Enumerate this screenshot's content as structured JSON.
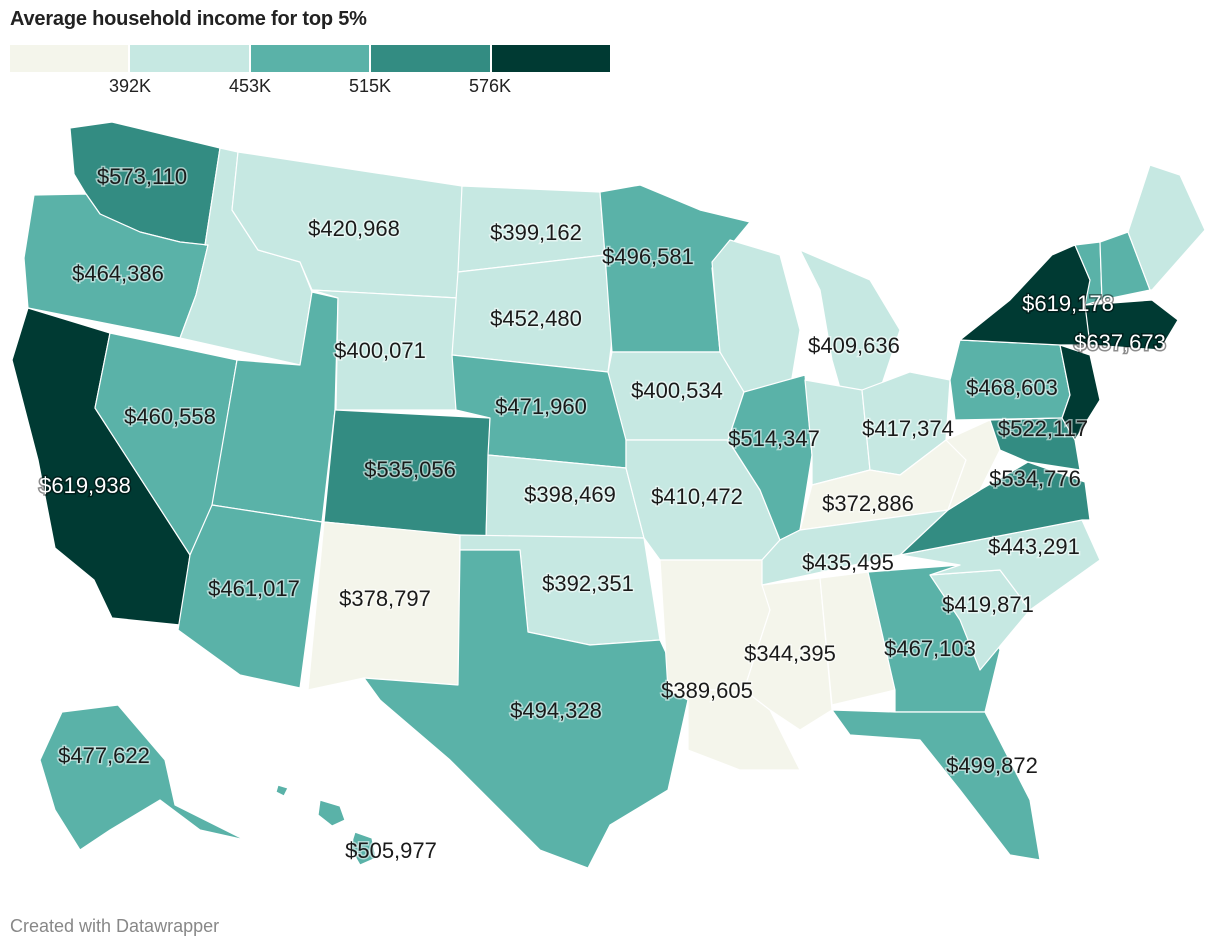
{
  "title": "Average household income for top 5%",
  "credit": "Created with Datawrapper",
  "legend": {
    "colors": [
      "#f4f5eb",
      "#c6e8e2",
      "#5ab2a8",
      "#338c82",
      "#003a33"
    ],
    "ticks": [
      "392K",
      "453K",
      "515K",
      "576K"
    ]
  },
  "states": [
    {
      "id": "WA",
      "value": "$573,110",
      "color": "#338c82",
      "light": false
    },
    {
      "id": "OR",
      "value": "$464,386",
      "color": "#5ab2a8",
      "light": false
    },
    {
      "id": "CA",
      "value": "$619,938",
      "color": "#003a33",
      "light": true
    },
    {
      "id": "ID",
      "value": "",
      "color": "#c6e8e2",
      "light": false
    },
    {
      "id": "MT",
      "value": "$420,968",
      "color": "#c6e8e2",
      "light": false
    },
    {
      "id": "NV",
      "value": "$460,558",
      "color": "#5ab2a8",
      "light": false
    },
    {
      "id": "UT",
      "value": "",
      "color": "#5ab2a8",
      "light": false
    },
    {
      "id": "AZ",
      "value": "$461,017",
      "color": "#5ab2a8",
      "light": false
    },
    {
      "id": "WY",
      "value": "$400,071",
      "color": "#c6e8e2",
      "light": false
    },
    {
      "id": "CO",
      "value": "$535,056",
      "color": "#338c82",
      "light": false
    },
    {
      "id": "NM",
      "value": "$378,797",
      "color": "#f4f5eb",
      "light": false
    },
    {
      "id": "ND",
      "value": "$399,162",
      "color": "#c6e8e2",
      "light": false
    },
    {
      "id": "SD",
      "value": "$452,480",
      "color": "#c6e8e2",
      "light": false
    },
    {
      "id": "NE",
      "value": "$471,960",
      "color": "#5ab2a8",
      "light": false
    },
    {
      "id": "KS",
      "value": "$398,469",
      "color": "#c6e8e2",
      "light": false
    },
    {
      "id": "OK",
      "value": "$392,351",
      "color": "#c6e8e2",
      "light": false
    },
    {
      "id": "TX",
      "value": "$494,328",
      "color": "#5ab2a8",
      "light": false
    },
    {
      "id": "MN",
      "value": "$496,581",
      "color": "#5ab2a8",
      "light": false
    },
    {
      "id": "IA",
      "value": "$400,534",
      "color": "#c6e8e2",
      "light": false
    },
    {
      "id": "MO",
      "value": "$410,472",
      "color": "#c6e8e2",
      "light": false
    },
    {
      "id": "AR",
      "value": "",
      "color": "#f4f5eb",
      "light": false
    },
    {
      "id": "LA",
      "value": "$389,605",
      "color": "#f4f5eb",
      "light": false
    },
    {
      "id": "WI",
      "value": "",
      "color": "#c6e8e2",
      "light": false
    },
    {
      "id": "IL",
      "value": "$514,347",
      "color": "#5ab2a8",
      "light": false
    },
    {
      "id": "MI",
      "value": "$409,636",
      "color": "#c6e8e2",
      "light": false
    },
    {
      "id": "IN",
      "value": "",
      "color": "#c6e8e2",
      "light": false
    },
    {
      "id": "OH",
      "value": "$417,374",
      "color": "#c6e8e2",
      "light": false
    },
    {
      "id": "KY",
      "value": "$372,886",
      "color": "#f4f5eb",
      "light": false
    },
    {
      "id": "TN",
      "value": "$435,495",
      "color": "#c6e8e2",
      "light": false
    },
    {
      "id": "MS",
      "value": "$344,395",
      "color": "#f4f5eb",
      "light": false
    },
    {
      "id": "AL",
      "value": "",
      "color": "#f4f5eb",
      "light": false
    },
    {
      "id": "GA",
      "value": "$467,103",
      "color": "#5ab2a8",
      "light": false
    },
    {
      "id": "FL",
      "value": "$499,872",
      "color": "#5ab2a8",
      "light": false
    },
    {
      "id": "SC",
      "value": "$419,871",
      "color": "#c6e8e2",
      "light": false
    },
    {
      "id": "NC",
      "value": "$443,291",
      "color": "#c6e8e2",
      "light": false
    },
    {
      "id": "VA",
      "value": "$534,776",
      "color": "#338c82",
      "light": false
    },
    {
      "id": "WV",
      "value": "",
      "color": "#f4f5eb",
      "light": false
    },
    {
      "id": "PA",
      "value": "$468,603",
      "color": "#5ab2a8",
      "light": false
    },
    {
      "id": "MD",
      "value": "$522,117",
      "color": "#338c82",
      "light": false
    },
    {
      "id": "NJ",
      "value": "",
      "color": "#003a33",
      "light": false
    },
    {
      "id": "NY",
      "value": "$619,178",
      "color": "#003a33",
      "light": true
    },
    {
      "id": "MA",
      "value": "$637,673",
      "color": "#003a33",
      "light": true
    },
    {
      "id": "VT",
      "value": "",
      "color": "#5ab2a8",
      "light": false
    },
    {
      "id": "NH",
      "value": "",
      "color": "#5ab2a8",
      "light": false
    },
    {
      "id": "ME",
      "value": "",
      "color": "#c6e8e2",
      "light": false
    },
    {
      "id": "AK",
      "value": "$477,622",
      "color": "#5ab2a8",
      "light": false
    },
    {
      "id": "HI",
      "value": "$505,977",
      "color": "#5ab2a8",
      "light": false
    }
  ]
}
